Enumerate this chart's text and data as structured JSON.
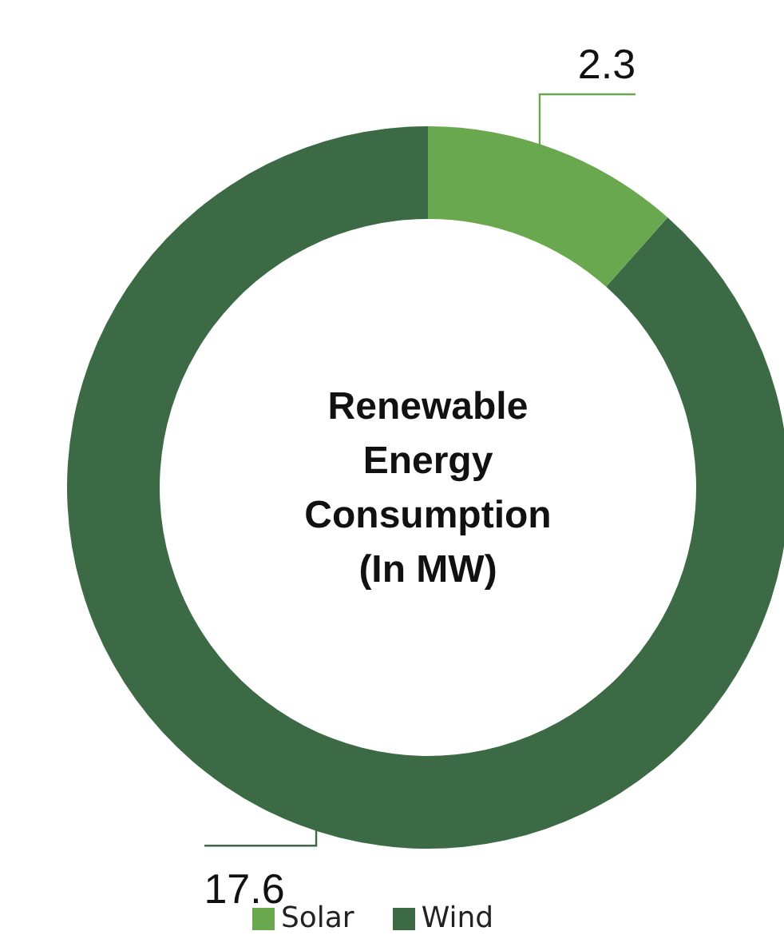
{
  "chart_data": {
    "type": "donut",
    "title": "Renewable Energy Consumption (In MW)",
    "categories": [
      "Wind",
      "Solar"
    ],
    "values": [
      17.6,
      2.3
    ],
    "colors": [
      "#3b6a45",
      "#6aa84f"
    ],
    "data_labels": true,
    "legend": "bottom"
  }
}
